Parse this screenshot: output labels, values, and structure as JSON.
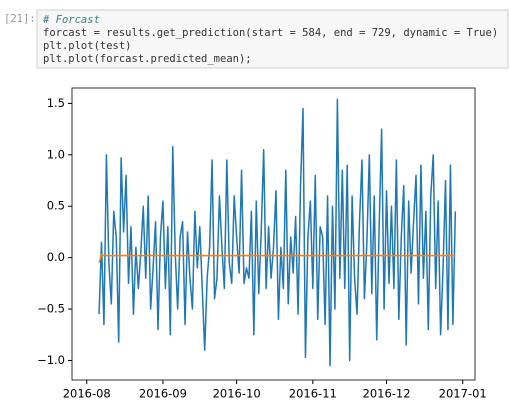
{
  "prompt": "[21]:",
  "code": [
    "# Forcast",
    "forcast = results.get_prediction(start = 584, end = 729, dynamic = True)",
    "plt.plot(test)",
    "plt.plot(forcast.predicted_mean);"
  ],
  "chart_data": {
    "type": "line",
    "x": [
      "2016-08-06",
      "2016-08-07",
      "2016-08-08",
      "2016-08-09",
      "2016-08-10",
      "2016-08-11",
      "2016-08-12",
      "2016-08-13",
      "2016-08-14",
      "2016-08-15",
      "2016-08-16",
      "2016-08-17",
      "2016-08-18",
      "2016-08-19",
      "2016-08-20",
      "2016-08-21",
      "2016-08-22",
      "2016-08-23",
      "2016-08-24",
      "2016-08-25",
      "2016-08-26",
      "2016-08-27",
      "2016-08-28",
      "2016-08-29",
      "2016-08-30",
      "2016-08-31",
      "2016-09-01",
      "2016-09-02",
      "2016-09-03",
      "2016-09-04",
      "2016-09-05",
      "2016-09-06",
      "2016-09-07",
      "2016-09-08",
      "2016-09-09",
      "2016-09-10",
      "2016-09-11",
      "2016-09-12",
      "2016-09-13",
      "2016-09-14",
      "2016-09-15",
      "2016-09-16",
      "2016-09-17",
      "2016-09-18",
      "2016-09-19",
      "2016-09-20",
      "2016-09-21",
      "2016-09-22",
      "2016-09-23",
      "2016-09-24",
      "2016-09-25",
      "2016-09-26",
      "2016-09-27",
      "2016-09-28",
      "2016-09-29",
      "2016-09-30",
      "2016-10-01",
      "2016-10-02",
      "2016-10-03",
      "2016-10-04",
      "2016-10-05",
      "2016-10-06",
      "2016-10-07",
      "2016-10-08",
      "2016-10-09",
      "2016-10-10",
      "2016-10-11",
      "2016-10-12",
      "2016-10-13",
      "2016-10-14",
      "2016-10-15",
      "2016-10-16",
      "2016-10-17",
      "2016-10-18",
      "2016-10-19",
      "2016-10-20",
      "2016-10-21",
      "2016-10-22",
      "2016-10-23",
      "2016-10-24",
      "2016-10-25",
      "2016-10-26",
      "2016-10-27",
      "2016-10-28",
      "2016-10-29",
      "2016-10-30",
      "2016-10-31",
      "2016-11-01",
      "2016-11-02",
      "2016-11-03",
      "2016-11-04",
      "2016-11-05",
      "2016-11-06",
      "2016-11-07",
      "2016-11-08",
      "2016-11-09",
      "2016-11-10",
      "2016-11-11",
      "2016-11-12",
      "2016-11-13",
      "2016-11-14",
      "2016-11-15",
      "2016-11-16",
      "2016-11-17",
      "2016-11-18",
      "2016-11-19",
      "2016-11-20",
      "2016-11-21",
      "2016-11-22",
      "2016-11-23",
      "2016-11-24",
      "2016-11-25",
      "2016-11-26",
      "2016-11-27",
      "2016-11-28",
      "2016-11-29",
      "2016-11-30",
      "2016-12-01",
      "2016-12-02",
      "2016-12-03",
      "2016-12-04",
      "2016-12-05",
      "2016-12-06",
      "2016-12-07",
      "2016-12-08",
      "2016-12-09",
      "2016-12-10",
      "2016-12-11",
      "2016-12-12",
      "2016-12-13",
      "2016-12-14",
      "2016-12-15",
      "2016-12-16",
      "2016-12-17",
      "2016-12-18",
      "2016-12-19",
      "2016-12-20",
      "2016-12-21",
      "2016-12-22",
      "2016-12-23",
      "2016-12-24",
      "2016-12-25",
      "2016-12-26",
      "2016-12-27",
      "2016-12-28",
      "2016-12-29"
    ],
    "series": [
      {
        "color": "#1f77b4",
        "values": [
          -0.55,
          0.15,
          -0.65,
          1.0,
          -0.05,
          -0.45,
          0.45,
          0.2,
          -0.82,
          0.97,
          0.25,
          0.8,
          -0.25,
          0.3,
          -0.55,
          0.1,
          -0.3,
          0.05,
          0.5,
          -0.2,
          0.6,
          -0.5,
          -0.1,
          0.35,
          -0.7,
          0.2,
          0.55,
          -0.3,
          0.3,
          -0.75,
          1.08,
          0.05,
          -0.5,
          0.2,
          0.35,
          -0.65,
          0.25,
          -0.2,
          -0.5,
          0.45,
          -0.1,
          0.3,
          -0.3,
          -0.9,
          -0.2,
          0.1,
          0.95,
          -0.4,
          -0.2,
          0.6,
          0.1,
          -0.3,
          0.95,
          -0.05,
          -0.25,
          0.6,
          0.2,
          -0.15,
          0.85,
          -0.25,
          -0.1,
          -0.2,
          0.45,
          -0.75,
          0.55,
          -0.35,
          0.25,
          1.05,
          -0.3,
          0.3,
          -0.2,
          0.1,
          0.65,
          -0.6,
          0.1,
          -0.3,
          0.85,
          -0.45,
          0.2,
          -0.15,
          0.4,
          -0.55,
          0.7,
          1.45,
          -0.97,
          0.2,
          0.55,
          -0.3,
          0.8,
          -0.6,
          0.3,
          0.2,
          -0.65,
          0.6,
          -1.05,
          0.5,
          -0.5,
          1.54,
          -0.2,
          0.85,
          -0.3,
          0.9,
          -1.0,
          0.6,
          -0.2,
          -0.55,
          0.35,
          0.95,
          -0.4,
          0.15,
          1.0,
          -0.35,
          0.6,
          -0.8,
          0.3,
          1.25,
          -0.5,
          0.65,
          -0.25,
          0.5,
          -0.3,
          0.95,
          -0.6,
          0.2,
          0.7,
          -0.85,
          0.55,
          -0.15,
          0.35,
          0.8,
          -0.45,
          0.9,
          -0.2,
          0.45,
          -0.7,
          0.6,
          1.0,
          -0.3,
          0.55,
          -0.75,
          -0.1,
          0.75,
          -0.7,
          0.9,
          -0.65,
          0.45
        ]
      },
      {
        "color": "#ff7f0e",
        "values": [
          -0.05,
          0.03,
          0.02,
          0.02,
          0.02,
          0.02,
          0.02,
          0.02,
          0.02,
          0.02,
          0.02,
          0.02,
          0.02,
          0.02,
          0.02,
          0.02,
          0.02,
          0.02,
          0.02,
          0.02,
          0.02,
          0.02,
          0.02,
          0.02,
          0.02,
          0.02,
          0.02,
          0.02,
          0.02,
          0.02,
          0.02,
          0.02,
          0.02,
          0.02,
          0.02,
          0.02,
          0.02,
          0.02,
          0.02,
          0.02,
          0.02,
          0.02,
          0.02,
          0.02,
          0.02,
          0.02,
          0.02,
          0.02,
          0.02,
          0.02,
          0.02,
          0.02,
          0.02,
          0.02,
          0.02,
          0.02,
          0.02,
          0.02,
          0.02,
          0.02,
          0.02,
          0.02,
          0.02,
          0.02,
          0.02,
          0.02,
          0.02,
          0.02,
          0.02,
          0.02,
          0.02,
          0.02,
          0.02,
          0.02,
          0.02,
          0.02,
          0.02,
          0.02,
          0.02,
          0.02,
          0.02,
          0.02,
          0.02,
          0.02,
          0.02,
          0.02,
          0.02,
          0.02,
          0.02,
          0.02,
          0.02,
          0.02,
          0.02,
          0.02,
          0.02,
          0.02,
          0.02,
          0.02,
          0.02,
          0.02,
          0.02,
          0.02,
          0.02,
          0.02,
          0.02,
          0.02,
          0.02,
          0.02,
          0.02,
          0.02,
          0.02,
          0.02,
          0.02,
          0.02,
          0.02,
          0.02,
          0.02,
          0.02,
          0.02,
          0.02,
          0.02,
          0.02,
          0.02,
          0.02,
          0.02,
          0.02,
          0.02,
          0.02,
          0.02,
          0.02,
          0.02,
          0.02,
          0.02,
          0.02,
          0.02,
          0.02,
          0.02,
          0.02,
          0.02,
          0.02,
          0.02,
          0.02,
          0.02,
          0.02,
          0.02,
          0.02
        ]
      }
    ],
    "xlim": [
      "2016-07-26",
      "2017-01-06"
    ],
    "xticks": [
      {
        "value": "2016-08-01",
        "label": "2016-08"
      },
      {
        "value": "2016-09-01",
        "label": "2016-09"
      },
      {
        "value": "2016-10-01",
        "label": "2016-10"
      },
      {
        "value": "2016-11-01",
        "label": "2016-11"
      },
      {
        "value": "2016-12-01",
        "label": "2016-12"
      },
      {
        "value": "2017-01-01",
        "label": "2017-01"
      }
    ],
    "ylim": [
      -1.19,
      1.65
    ],
    "yticks": [
      {
        "value": -1.0,
        "label": "−1.0"
      },
      {
        "value": -0.5,
        "label": "−0.5"
      },
      {
        "value": 0.0,
        "label": "0.0"
      },
      {
        "value": 0.5,
        "label": "0.5"
      },
      {
        "value": 1.0,
        "label": "1.0"
      },
      {
        "value": 1.5,
        "label": "1.5"
      }
    ],
    "grid": false
  }
}
